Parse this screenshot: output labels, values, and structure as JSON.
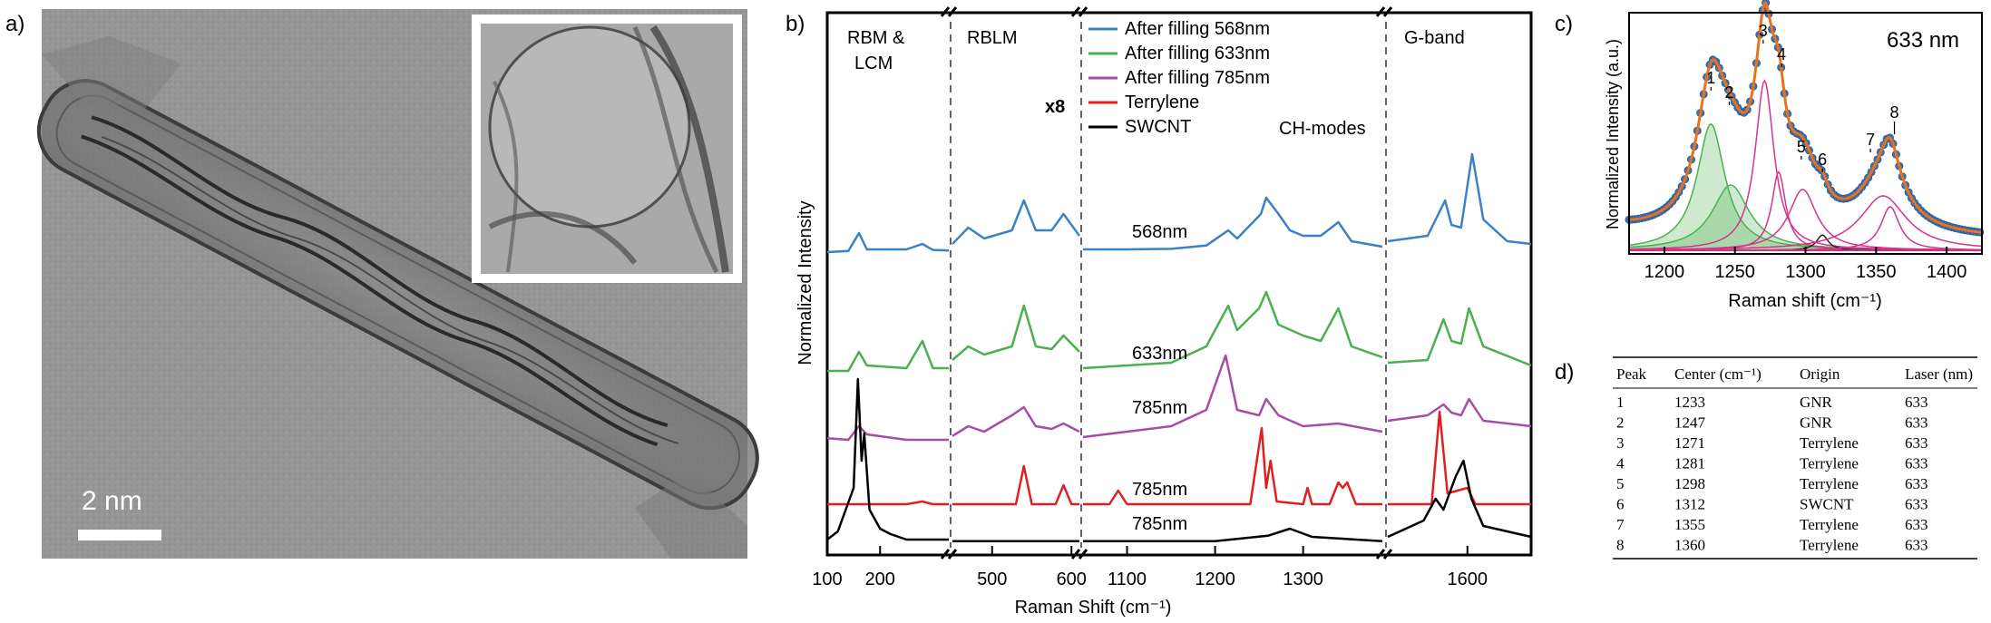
{
  "figure": {
    "panel_labels": {
      "a": "a)",
      "b": "b)",
      "c": "c)",
      "d": "d)"
    }
  },
  "panel_a": {
    "scale_bar_label": "2 nm"
  },
  "chart_data": [
    {
      "panel": "b",
      "type": "line",
      "xlabel": "Raman Shift (cm⁻¹)",
      "ylabel": "Normalized Intensity",
      "x_ticks": [
        "100",
        "200",
        "500",
        "600",
        "1100",
        "1200",
        "1300",
        "1600"
      ],
      "region_labels": [
        "RBM &",
        "LCM",
        "RBLM",
        "CH-modes",
        "G-band"
      ],
      "multiplier_label": "x8",
      "legend": [
        {
          "name": "After filling 568nm",
          "color": "#3b82c4"
        },
        {
          "name": "After filling 633nm",
          "color": "#4caf50"
        },
        {
          "name": "After filling 785nm",
          "color": "#a64ca6"
        },
        {
          "name": "Terrylene",
          "color": "#e02020"
        },
        {
          "name": "SWCNT",
          "color": "#000000"
        }
      ],
      "trace_labels": [
        "568nm",
        "633nm",
        "785nm",
        "785nm",
        "785nm"
      ],
      "series": [
        {
          "name": "After filling 568nm",
          "color": "#3b82c4",
          "segments": [
            [
              [
                100,
                0
              ],
              [
                140,
                0.02
              ],
              [
                160,
                0.35
              ],
              [
                175,
                0.05
              ],
              [
                250,
                0.05
              ],
              [
                280,
                0.15
              ],
              [
                300,
                0.04
              ],
              [
                330,
                0.03
              ]
            ],
            [
              [
                450,
                0.15
              ],
              [
                470,
                0.45
              ],
              [
                490,
                0.25
              ],
              [
                525,
                0.4
              ],
              [
                540,
                0.95
              ],
              [
                555,
                0.4
              ],
              [
                575,
                0.4
              ],
              [
                590,
                0.7
              ],
              [
                610,
                0.3
              ]
            ],
            [
              [
                1050,
                0.05
              ],
              [
                1100,
                0.05
              ],
              [
                1150,
                0.06
              ],
              [
                1190,
                0.12
              ],
              [
                1215,
                0.4
              ],
              [
                1225,
                0.25
              ],
              [
                1252,
                0.7
              ],
              [
                1258,
                1.0
              ],
              [
                1272,
                0.7
              ],
              [
                1285,
                0.4
              ],
              [
                1300,
                0.3
              ],
              [
                1320,
                0.3
              ],
              [
                1340,
                0.55
              ],
              [
                1355,
                0.2
              ],
              [
                1390,
                0.1
              ]
            ],
            [
              [
                1500,
                0.2
              ],
              [
                1550,
                0.3
              ],
              [
                1572,
                0.95
              ],
              [
                1580,
                0.5
              ],
              [
                1592,
                0.45
              ],
              [
                1606,
                1.8
              ],
              [
                1620,
                0.6
              ],
              [
                1650,
                0.2
              ],
              [
                1680,
                0.15
              ]
            ]
          ]
        },
        {
          "name": "After filling 633nm",
          "color": "#4caf50",
          "segments": [
            [
              [
                100,
                0.05
              ],
              [
                140,
                0.05
              ],
              [
                160,
                0.4
              ],
              [
                175,
                0.15
              ],
              [
                250,
                0.1
              ],
              [
                280,
                0.6
              ],
              [
                300,
                0.1
              ],
              [
                330,
                0.1
              ]
            ],
            [
              [
                450,
                0.25
              ],
              [
                470,
                0.5
              ],
              [
                490,
                0.35
              ],
              [
                525,
                0.5
              ],
              [
                540,
                1.25
              ],
              [
                555,
                0.5
              ],
              [
                575,
                0.45
              ],
              [
                590,
                0.7
              ],
              [
                610,
                0.4
              ]
            ],
            [
              [
                1050,
                0.1
              ],
              [
                1100,
                0.15
              ],
              [
                1150,
                0.2
              ],
              [
                1190,
                0.5
              ],
              [
                1215,
                1.25
              ],
              [
                1225,
                0.8
              ],
              [
                1250,
                1.2
              ],
              [
                1258,
                1.5
              ],
              [
                1272,
                0.9
              ],
              [
                1300,
                0.7
              ],
              [
                1320,
                0.6
              ],
              [
                1340,
                1.2
              ],
              [
                1355,
                0.5
              ],
              [
                1390,
                0.3
              ]
            ],
            [
              [
                1500,
                0.2
              ],
              [
                1550,
                0.25
              ],
              [
                1570,
                1.0
              ],
              [
                1580,
                0.6
              ],
              [
                1592,
                0.55
              ],
              [
                1602,
                1.2
              ],
              [
                1620,
                0.5
              ],
              [
                1680,
                0.15
              ]
            ]
          ]
        },
        {
          "name": "After filling 785nm",
          "color": "#a64ca6",
          "segments": [
            [
              [
                100,
                0.08
              ],
              [
                140,
                0.05
              ],
              [
                160,
                0.3
              ],
              [
                175,
                0.15
              ],
              [
                250,
                0.05
              ],
              [
                330,
                0.05
              ]
            ],
            [
              [
                450,
                0.12
              ],
              [
                470,
                0.3
              ],
              [
                490,
                0.2
              ],
              [
                525,
                0.5
              ],
              [
                540,
                0.65
              ],
              [
                555,
                0.3
              ],
              [
                575,
                0.25
              ],
              [
                590,
                0.35
              ],
              [
                610,
                0.2
              ]
            ],
            [
              [
                1050,
                0.1
              ],
              [
                1100,
                0.2
              ],
              [
                1150,
                0.3
              ],
              [
                1190,
                0.6
              ],
              [
                1212,
                1.6
              ],
              [
                1225,
                0.6
              ],
              [
                1250,
                0.5
              ],
              [
                1258,
                0.8
              ],
              [
                1272,
                0.5
              ],
              [
                1300,
                0.3
              ],
              [
                1340,
                0.35
              ],
              [
                1390,
                0.2
              ]
            ],
            [
              [
                1500,
                0.4
              ],
              [
                1550,
                0.5
              ],
              [
                1570,
                0.7
              ],
              [
                1580,
                0.55
              ],
              [
                1592,
                0.5
              ],
              [
                1602,
                0.8
              ],
              [
                1620,
                0.4
              ],
              [
                1680,
                0.3
              ]
            ]
          ]
        },
        {
          "name": "Terrylene",
          "color": "#e02020",
          "segments": [
            [
              [
                100,
                0
              ],
              [
                250,
                0
              ],
              [
                280,
                0.05
              ],
              [
                300,
                0
              ],
              [
                330,
                0
              ]
            ],
            [
              [
                450,
                0
              ],
              [
                530,
                0
              ],
              [
                540,
                0.7
              ],
              [
                550,
                0
              ],
              [
                580,
                0
              ],
              [
                590,
                0.35
              ],
              [
                600,
                0
              ],
              [
                610,
                0
              ]
            ],
            [
              [
                1050,
                0
              ],
              [
                1080,
                0
              ],
              [
                1090,
                0.25
              ],
              [
                1100,
                0
              ],
              [
                1240,
                0
              ],
              [
                1253,
                1.4
              ],
              [
                1258,
                0.3
              ],
              [
                1263,
                0.8
              ],
              [
                1270,
                0.05
              ],
              [
                1300,
                0
              ],
              [
                1305,
                0.3
              ],
              [
                1310,
                0
              ],
              [
                1330,
                0
              ],
              [
                1340,
                0.4
              ],
              [
                1345,
                0.3
              ],
              [
                1350,
                0.4
              ],
              [
                1360,
                0
              ],
              [
                1390,
                0
              ]
            ],
            [
              [
                1500,
                0
              ],
              [
                1555,
                0
              ],
              [
                1565,
                1.7
              ],
              [
                1575,
                0.2
              ],
              [
                1600,
                0.3
              ],
              [
                1610,
                0
              ],
              [
                1680,
                0
              ]
            ]
          ]
        },
        {
          "name": "SWCNT",
          "color": "#000000",
          "segments": [
            [
              [
                100,
                0.05
              ],
              [
                120,
                0.2
              ],
              [
                150,
                1.0
              ],
              [
                158,
                3.0
              ],
              [
                165,
                1.5
              ],
              [
                170,
                2.0
              ],
              [
                180,
                0.6
              ],
              [
                200,
                0.25
              ],
              [
                220,
                0.15
              ],
              [
                250,
                0.05
              ],
              [
                330,
                0.05
              ]
            ],
            [
              [
                450,
                0.02
              ],
              [
                610,
                0.02
              ]
            ],
            [
              [
                1050,
                0.02
              ],
              [
                1200,
                0.02
              ],
              [
                1260,
                0.12
              ],
              [
                1285,
                0.25
              ],
              [
                1310,
                0.1
              ],
              [
                1390,
                0.02
              ]
            ],
            [
              [
                1500,
                0.1
              ],
              [
                1545,
                0.4
              ],
              [
                1560,
                0.8
              ],
              [
                1570,
                0.6
              ],
              [
                1585,
                1.2
              ],
              [
                1595,
                1.5
              ],
              [
                1605,
                0.8
              ],
              [
                1620,
                0.3
              ],
              [
                1680,
                0.1
              ]
            ]
          ]
        }
      ]
    },
    {
      "panel": "c",
      "type": "line",
      "title": "633 nm",
      "xlabel": "Raman shift (cm⁻¹)",
      "ylabel": "Normalized Intensity (a.u.)",
      "x_ticks": [
        "1200",
        "1250",
        "1300",
        "1350",
        "1400"
      ],
      "xlim": [
        1175,
        1425
      ],
      "peak_labels": [
        "1",
        "2",
        "3",
        "4",
        "5",
        "6",
        "7",
        "8"
      ],
      "peaks": [
        {
          "label": "1",
          "center": 1233,
          "height": 0.58,
          "width": 12,
          "color": "#4caf50"
        },
        {
          "label": "2",
          "center": 1247,
          "height": 0.3,
          "width": 16,
          "color": "#4caf50"
        },
        {
          "label": "3",
          "center": 1271,
          "height": 0.78,
          "width": 8,
          "color": "#d6338c"
        },
        {
          "label": "4",
          "center": 1281,
          "height": 0.36,
          "width": 6,
          "color": "#d6338c"
        },
        {
          "label": "5",
          "center": 1298,
          "height": 0.28,
          "width": 12,
          "color": "#d6338c"
        },
        {
          "label": "6",
          "center": 1312,
          "height": 0.07,
          "width": 5,
          "color": "#222222"
        },
        {
          "label": "7",
          "center": 1355,
          "height": 0.25,
          "width": 20,
          "color": "#d6338c"
        },
        {
          "label": "8",
          "center": 1360,
          "height": 0.2,
          "width": 8,
          "color": "#d6338c"
        }
      ],
      "fit_color": "#e8731a",
      "data_color": "#3a6fb5"
    }
  ],
  "table_d": {
    "headers": [
      "Peak",
      "Center (cm⁻¹)",
      "Origin",
      "Laser (nm)"
    ],
    "rows": [
      [
        "1",
        "1233",
        "GNR",
        "633"
      ],
      [
        "2",
        "1247",
        "GNR",
        "633"
      ],
      [
        "3",
        "1271",
        "Terrylene",
        "633"
      ],
      [
        "4",
        "1281",
        "Terrylene",
        "633"
      ],
      [
        "5",
        "1298",
        "Terrylene",
        "633"
      ],
      [
        "6",
        "1312",
        "SWCNT",
        "633"
      ],
      [
        "7",
        "1355",
        "Terrylene",
        "633"
      ],
      [
        "8",
        "1360",
        "Terrylene",
        "633"
      ]
    ]
  }
}
